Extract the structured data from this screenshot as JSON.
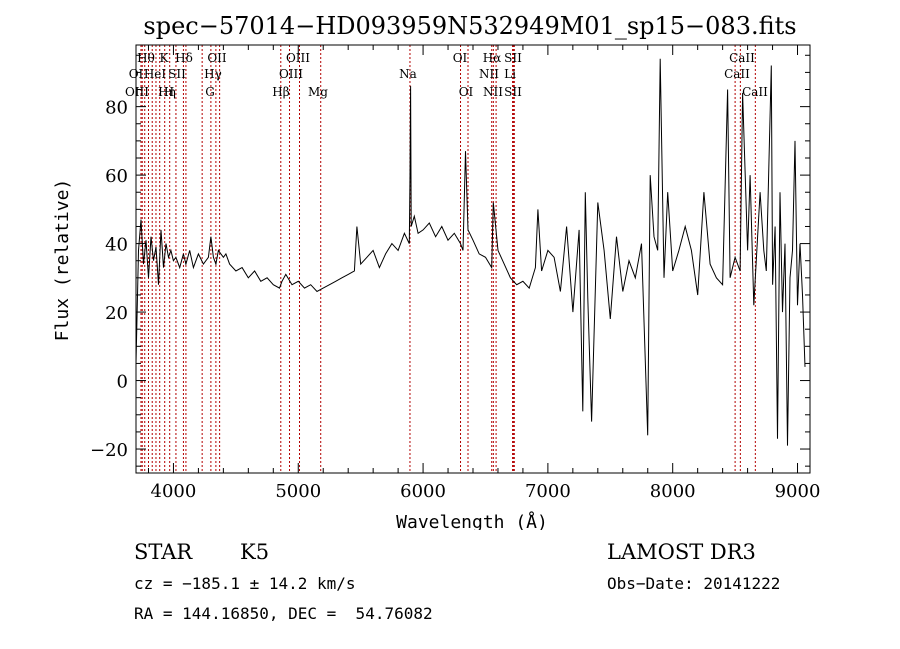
{
  "chart_data": {
    "type": "line",
    "title": "spec−57014−HD093959N532949M01_sp15−083.fits",
    "xlabel": "Wavelength (Å)",
    "ylabel": "Flux (relative)",
    "xlim": [
      3700,
      9100
    ],
    "ylim": [
      -27,
      98
    ],
    "xticks": [
      4000,
      5000,
      6000,
      7000,
      8000,
      9000
    ],
    "yticks": [
      -20,
      0,
      20,
      40,
      60,
      80
    ],
    "ytick_labels": [
      "−20",
      "0",
      "20",
      "40",
      "60",
      "80"
    ],
    "grid": false,
    "series": [
      {
        "name": "flux",
        "x": [
          3700,
          3720,
          3740,
          3760,
          3780,
          3800,
          3820,
          3840,
          3860,
          3880,
          3900,
          3920,
          3940,
          3960,
          3980,
          4000,
          4020,
          4050,
          4080,
          4100,
          4130,
          4160,
          4200,
          4240,
          4280,
          4300,
          4320,
          4340,
          4360,
          4380,
          4400,
          4420,
          4450,
          4500,
          4550,
          4600,
          4650,
          4700,
          4750,
          4800,
          4850,
          4870,
          4900,
          4950,
          5000,
          5050,
          5100,
          5150,
          5200,
          5250,
          5300,
          5350,
          5400,
          5450,
          5470,
          5500,
          5550,
          5600,
          5650,
          5700,
          5750,
          5800,
          5850,
          5890,
          5895,
          5900,
          5905,
          5930,
          5960,
          6000,
          6050,
          6100,
          6150,
          6200,
          6250,
          6300,
          6320,
          6340,
          6360,
          6400,
          6450,
          6500,
          6550,
          6563,
          6600,
          6650,
          6700,
          6750,
          6800,
          6850,
          6900,
          6920,
          6950,
          7000,
          7050,
          7100,
          7150,
          7200,
          7250,
          7280,
          7300,
          7320,
          7350,
          7400,
          7450,
          7500,
          7550,
          7600,
          7650,
          7700,
          7750,
          7800,
          7820,
          7850,
          7880,
          7900,
          7930,
          7960,
          8000,
          8050,
          8100,
          8150,
          8200,
          8250,
          8300,
          8350,
          8400,
          8440,
          8460,
          8500,
          8540,
          8560,
          8600,
          8620,
          8650,
          8680,
          8700,
          8730,
          8750,
          8770,
          8790,
          8800,
          8820,
          8840,
          8860,
          8880,
          8900,
          8920,
          8940,
          8960,
          8980,
          9000,
          9020,
          9040,
          9060
        ],
        "y": [
          5,
          38,
          47,
          34,
          41,
          30,
          42,
          35,
          39,
          28,
          44,
          33,
          40,
          36,
          38,
          35,
          36,
          33,
          37,
          34,
          38,
          33,
          37,
          34,
          36,
          42,
          36,
          34,
          38,
          37,
          36,
          37,
          34,
          32,
          33,
          30,
          32,
          29,
          30,
          28,
          27,
          29,
          31,
          28,
          29,
          27,
          28,
          26,
          27,
          28,
          29,
          30,
          31,
          32,
          45,
          34,
          36,
          38,
          33,
          37,
          40,
          38,
          43,
          40,
          60,
          86,
          45,
          48,
          43,
          44,
          46,
          42,
          45,
          41,
          43,
          40,
          38,
          67,
          44,
          41,
          37,
          36,
          33,
          52,
          38,
          34,
          30,
          28,
          29,
          27,
          33,
          50,
          32,
          38,
          36,
          26,
          45,
          20,
          44,
          -9,
          55,
          24,
          -12,
          52,
          38,
          18,
          42,
          26,
          35,
          30,
          40,
          -16,
          60,
          42,
          38,
          94,
          30,
          55,
          32,
          38,
          45,
          38,
          25,
          55,
          34,
          30,
          28,
          85,
          30,
          36,
          32,
          84,
          38,
          60,
          22,
          42,
          55,
          38,
          32,
          62,
          92,
          28,
          45,
          -17,
          55,
          20,
          40,
          -19,
          30,
          38,
          70,
          22,
          40,
          25,
          4
        ]
      }
    ],
    "line_positions": [
      3740,
      3750,
      3770,
      3800,
      3830,
      3860,
      3890,
      3930,
      3970,
      4020,
      4080,
      4100,
      4230,
      4300,
      4340,
      4370,
      4860,
      4930,
      5010,
      5180,
      5895,
      6300,
      6360,
      6550,
      6563,
      6585,
      6717,
      6725,
      6731,
      8500,
      8542,
      8662
    ],
    "line_labels": {
      "row1": [
        "Hθ",
        "K",
        "Hδ",
        "OII",
        "OIII",
        "OI",
        "Hα",
        "SII",
        "CaII"
      ],
      "row2": [
        "OI",
        "HeI",
        "SII",
        "Hγ",
        "OIII",
        "Na",
        "NII",
        "Li",
        "CaII"
      ],
      "row3": [
        "OIII",
        "Hη",
        "H",
        "G",
        "Hβ",
        "Mg",
        "OI",
        "NII",
        "SII",
        "CaII"
      ]
    }
  },
  "info": {
    "class": "STAR",
    "subclass": "K5",
    "survey": "LAMOST DR3",
    "cz": "cz = −185.1 ± 14.2 km/s",
    "obs_date": "Obs−Date: 20141222",
    "coords": "RA = 144.16850, DEC =  54.76082"
  },
  "colors": {
    "line_marker": "#b30000",
    "spectrum": "#000000"
  }
}
